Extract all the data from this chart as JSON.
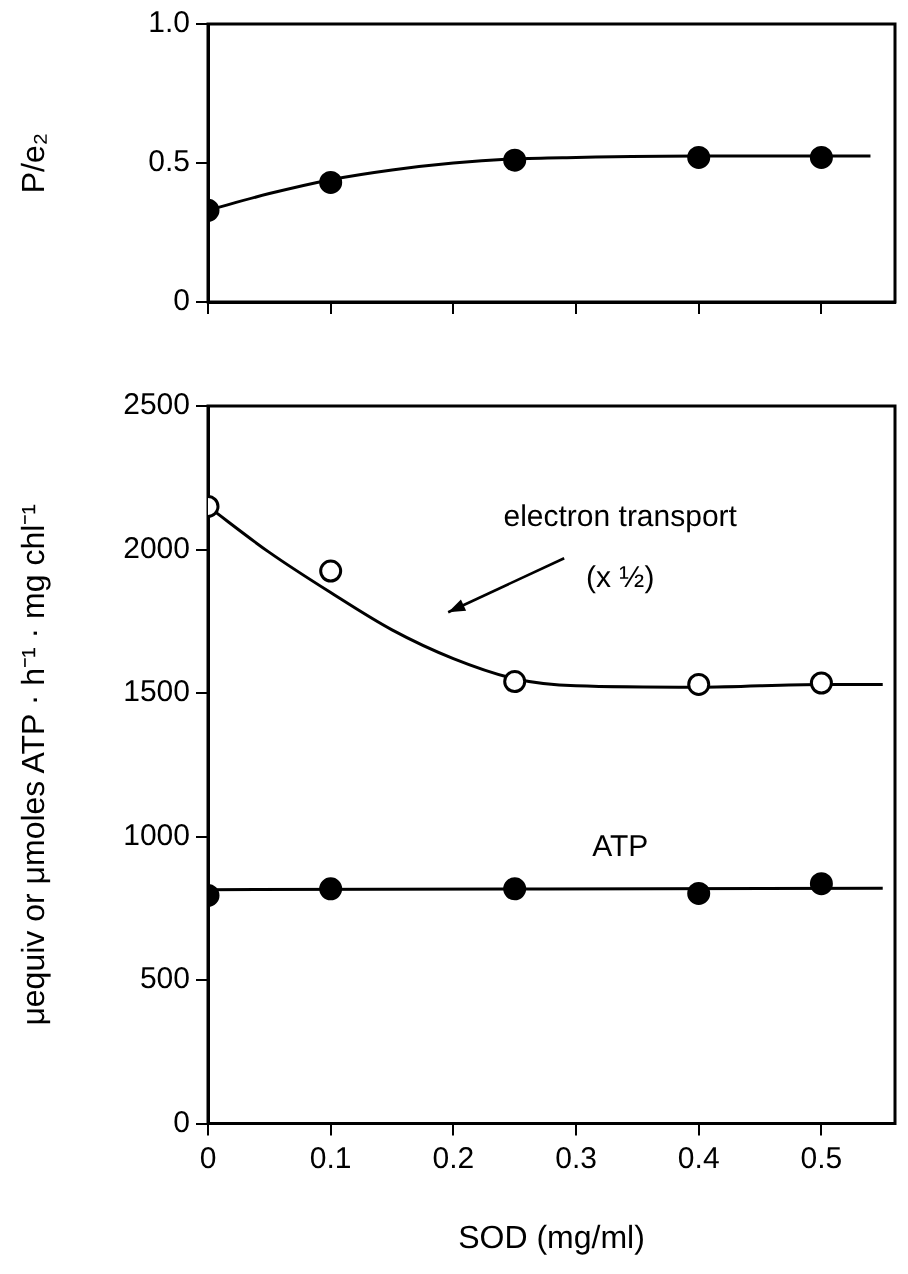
{
  "chart_data": [
    {
      "type": "scatter",
      "ylabel": "P/e₂",
      "xlim": [
        0,
        0.56
      ],
      "xticks": [
        {
          "value": 0,
          "label": null
        },
        {
          "value": 0.1,
          "label": null
        },
        {
          "value": 0.2,
          "label": null
        },
        {
          "value": 0.3,
          "label": null
        },
        {
          "value": 0.4,
          "label": null
        },
        {
          "value": 0.5,
          "label": null
        }
      ],
      "ylim": [
        0,
        1
      ],
      "yticks": [
        0,
        0.5,
        {
          "value": 1,
          "label": "1.0"
        }
      ],
      "tick_labels": "y",
      "marker": "circle",
      "grid": false,
      "legend": false,
      "series": [
        {
          "type": "line",
          "marker": "none",
          "color": "#000000",
          "x": [
            0,
            0.05,
            0.1,
            0.15,
            0.2,
            0.25,
            0.3,
            0.4,
            0.5,
            0.54
          ],
          "values": [
            0.33,
            0.39,
            0.44,
            0.475,
            0.5,
            0.515,
            0.52,
            0.525,
            0.525,
            0.525
          ]
        },
        {
          "color": "#000000",
          "x": [
            0,
            0.1,
            0.25,
            0.4,
            0.5
          ],
          "values": [
            0.33,
            0.43,
            0.51,
            0.52,
            0.52
          ]
        }
      ]
    },
    {
      "type": "scatter",
      "xlabel": "SOD (mg/ml)",
      "ylabel": "μequiv or μmoles ATP · h⁻¹ · mg chl⁻¹",
      "xlim": [
        0,
        0.56
      ],
      "xticks": [
        0,
        0.1,
        0.2,
        0.3,
        0.4,
        0.5
      ],
      "ylim": [
        0,
        2500
      ],
      "yticks": [
        0,
        500,
        1000,
        1500,
        2000,
        2500
      ],
      "marker": "circle",
      "grid": false,
      "legend": false,
      "annotations": [
        "electron transport",
        "(x ½)",
        "ATP"
      ],
      "series": [
        {
          "type": "line",
          "marker": "none",
          "color": "#000000",
          "x": [
            0,
            0.05,
            0.1,
            0.15,
            0.2,
            0.25,
            0.3,
            0.4,
            0.5,
            0.55
          ],
          "values": [
            2150,
            1990,
            1850,
            1720,
            1620,
            1550,
            1525,
            1520,
            1530,
            1530
          ]
        },
        {
          "color": "#ffffff",
          "x": [
            0,
            0.1,
            0.25,
            0.4,
            0.5
          ],
          "values": [
            2150,
            1925,
            1540,
            1530,
            1535
          ]
        },
        {
          "type": "line",
          "marker": "none",
          "color": "#000000",
          "x": [
            0,
            0.55
          ],
          "values": [
            815,
            820
          ]
        },
        {
          "color": "#000000",
          "x": [
            0,
            0.1,
            0.25,
            0.4,
            0.5
          ],
          "values": [
            795,
            818,
            818,
            802,
            836
          ]
        }
      ]
    }
  ]
}
